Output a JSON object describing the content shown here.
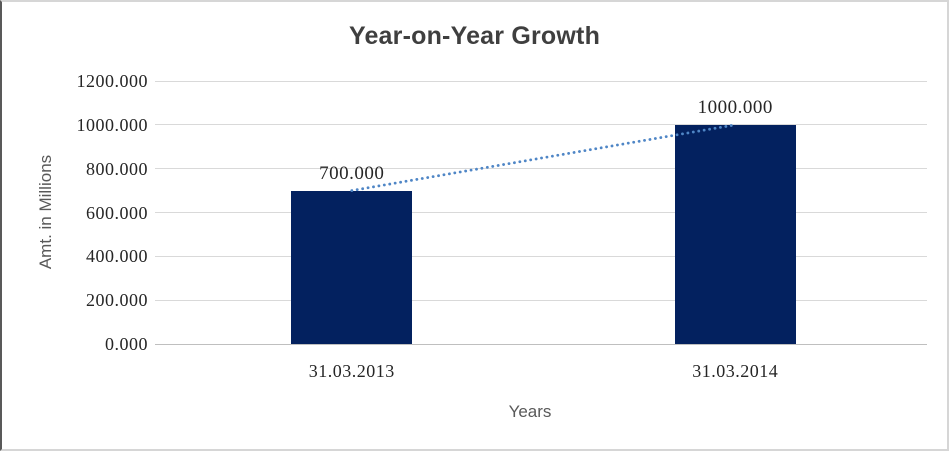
{
  "chart_data": {
    "type": "bar",
    "title": "Year-on-Year Growth",
    "categories": [
      "31.03.2013",
      "31.03.2014"
    ],
    "values": [
      700,
      1000
    ],
    "data_labels": [
      "700.000",
      "1000.000"
    ],
    "xlabel": "Years",
    "ylabel": "Amt. in Millions",
    "ylim": [
      0,
      1200
    ],
    "yticks": [
      {
        "value": 0,
        "label": "0.000"
      },
      {
        "value": 200,
        "label": "200.000"
      },
      {
        "value": 400,
        "label": "400.000"
      },
      {
        "value": 600,
        "label": "600.000"
      },
      {
        "value": 800,
        "label": "800.000"
      },
      {
        "value": 1000,
        "label": "1000.000"
      },
      {
        "value": 1200,
        "label": "1200.000"
      }
    ],
    "grid": true,
    "legend": false,
    "bar_color": "#03215f",
    "trendline": {
      "type": "linear",
      "style": "dotted",
      "color": "#4f86c6",
      "from_value": 700,
      "to_value": 1000
    }
  },
  "frame": {
    "background": "#ffffff",
    "border_left_color": "#595959",
    "border_color": "#d6d6d6",
    "gridline_color": "#d9d9d9",
    "axis_line_color": "#bfbfbf",
    "title_color": "#3f3f3f",
    "tick_label_color": "#262626",
    "axis_title_color": "#595959"
  }
}
